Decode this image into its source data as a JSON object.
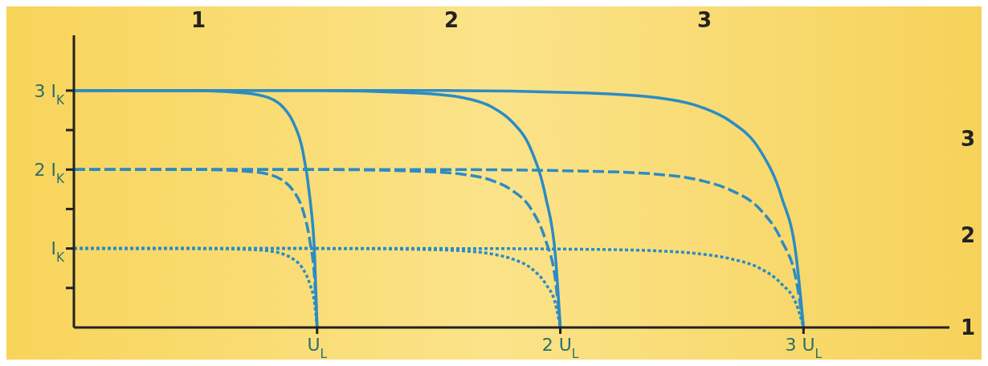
{
  "chart_data": {
    "type": "line",
    "xlim": [
      0,
      3.6
    ],
    "ylim": [
      0,
      3.7
    ],
    "xticks": [
      {
        "value": 1,
        "label": "U$_{L}$"
      },
      {
        "value": 2,
        "label": "2 U$_{L}$"
      },
      {
        "value": 3,
        "label": "3 U$_{L}$"
      }
    ],
    "yticks": [
      {
        "value": 0.5,
        "label": null
      },
      {
        "value": 1,
        "label": "I$_{K}$"
      },
      {
        "value": 1.5,
        "label": null
      },
      {
        "value": 2,
        "label": "2 I$_{K}$"
      },
      {
        "value": 2.5,
        "label": null
      },
      {
        "value": 3,
        "label": "3 I$_{K}$"
      }
    ],
    "grid": false,
    "annotations": [
      "1",
      "2",
      "3",
      "3",
      "2",
      "1"
    ],
    "series": [
      {
        "color": "#2b8cc4",
        "line_style": "solid",
        "x": [
          0,
          0.5,
          0.7,
          0.8,
          0.86,
          0.9,
          0.94,
          0.97,
          0.99,
          1
        ],
        "values": [
          3,
          3,
          2.97,
          2.91,
          2.79,
          2.61,
          2.25,
          1.65,
          0.9,
          0
        ]
      },
      {
        "color": "#2b8cc4",
        "line_style": "solid",
        "x": [
          0,
          1,
          1.4,
          1.6,
          1.72,
          1.8,
          1.88,
          1.94,
          1.98,
          2
        ],
        "values": [
          3,
          3,
          2.97,
          2.91,
          2.79,
          2.61,
          2.25,
          1.65,
          0.9,
          0
        ]
      },
      {
        "color": "#2b8cc4",
        "line_style": "solid",
        "x": [
          0,
          1.5,
          2.1,
          2.4,
          2.58,
          2.7,
          2.82,
          2.91,
          2.97,
          3
        ],
        "values": [
          3,
          3,
          2.97,
          2.91,
          2.79,
          2.61,
          2.25,
          1.65,
          0.9,
          0
        ]
      },
      {
        "color": "#2b8cc4",
        "line_style": "dashed",
        "x": [
          0,
          0.5,
          0.7,
          0.8,
          0.86,
          0.9,
          0.94,
          0.97,
          0.99,
          1
        ],
        "values": [
          2,
          2,
          1.98,
          1.94,
          1.86,
          1.74,
          1.5,
          1.1,
          0.6,
          0
        ]
      },
      {
        "color": "#2b8cc4",
        "line_style": "dashed",
        "x": [
          0,
          1,
          1.4,
          1.6,
          1.72,
          1.8,
          1.88,
          1.94,
          1.98,
          2
        ],
        "values": [
          2,
          2,
          1.98,
          1.94,
          1.86,
          1.74,
          1.5,
          1.1,
          0.6,
          0
        ]
      },
      {
        "color": "#2b8cc4",
        "line_style": "dashed",
        "x": [
          0,
          1.5,
          2.1,
          2.4,
          2.58,
          2.7,
          2.82,
          2.91,
          2.97,
          3
        ],
        "values": [
          2,
          2,
          1.98,
          1.94,
          1.86,
          1.74,
          1.5,
          1.1,
          0.6,
          0
        ]
      },
      {
        "color": "#2b8cc4",
        "line_style": "dotted",
        "x": [
          0,
          0.5,
          0.7,
          0.8,
          0.86,
          0.9,
          0.94,
          0.97,
          0.99,
          1
        ],
        "values": [
          1,
          1,
          0.99,
          0.97,
          0.93,
          0.87,
          0.75,
          0.55,
          0.3,
          0
        ]
      },
      {
        "color": "#2b8cc4",
        "line_style": "dotted",
        "x": [
          0,
          1,
          1.4,
          1.6,
          1.72,
          1.8,
          1.88,
          1.94,
          1.98,
          2
        ],
        "values": [
          1,
          1,
          0.99,
          0.97,
          0.93,
          0.87,
          0.75,
          0.55,
          0.3,
          0
        ]
      },
      {
        "color": "#2b8cc4",
        "line_style": "dotted",
        "x": [
          0,
          1.5,
          2.1,
          2.4,
          2.58,
          2.7,
          2.82,
          2.91,
          2.97,
          3
        ],
        "values": [
          1,
          1,
          0.99,
          0.97,
          0.93,
          0.87,
          0.75,
          0.55,
          0.3,
          0
        ]
      }
    ]
  }
}
